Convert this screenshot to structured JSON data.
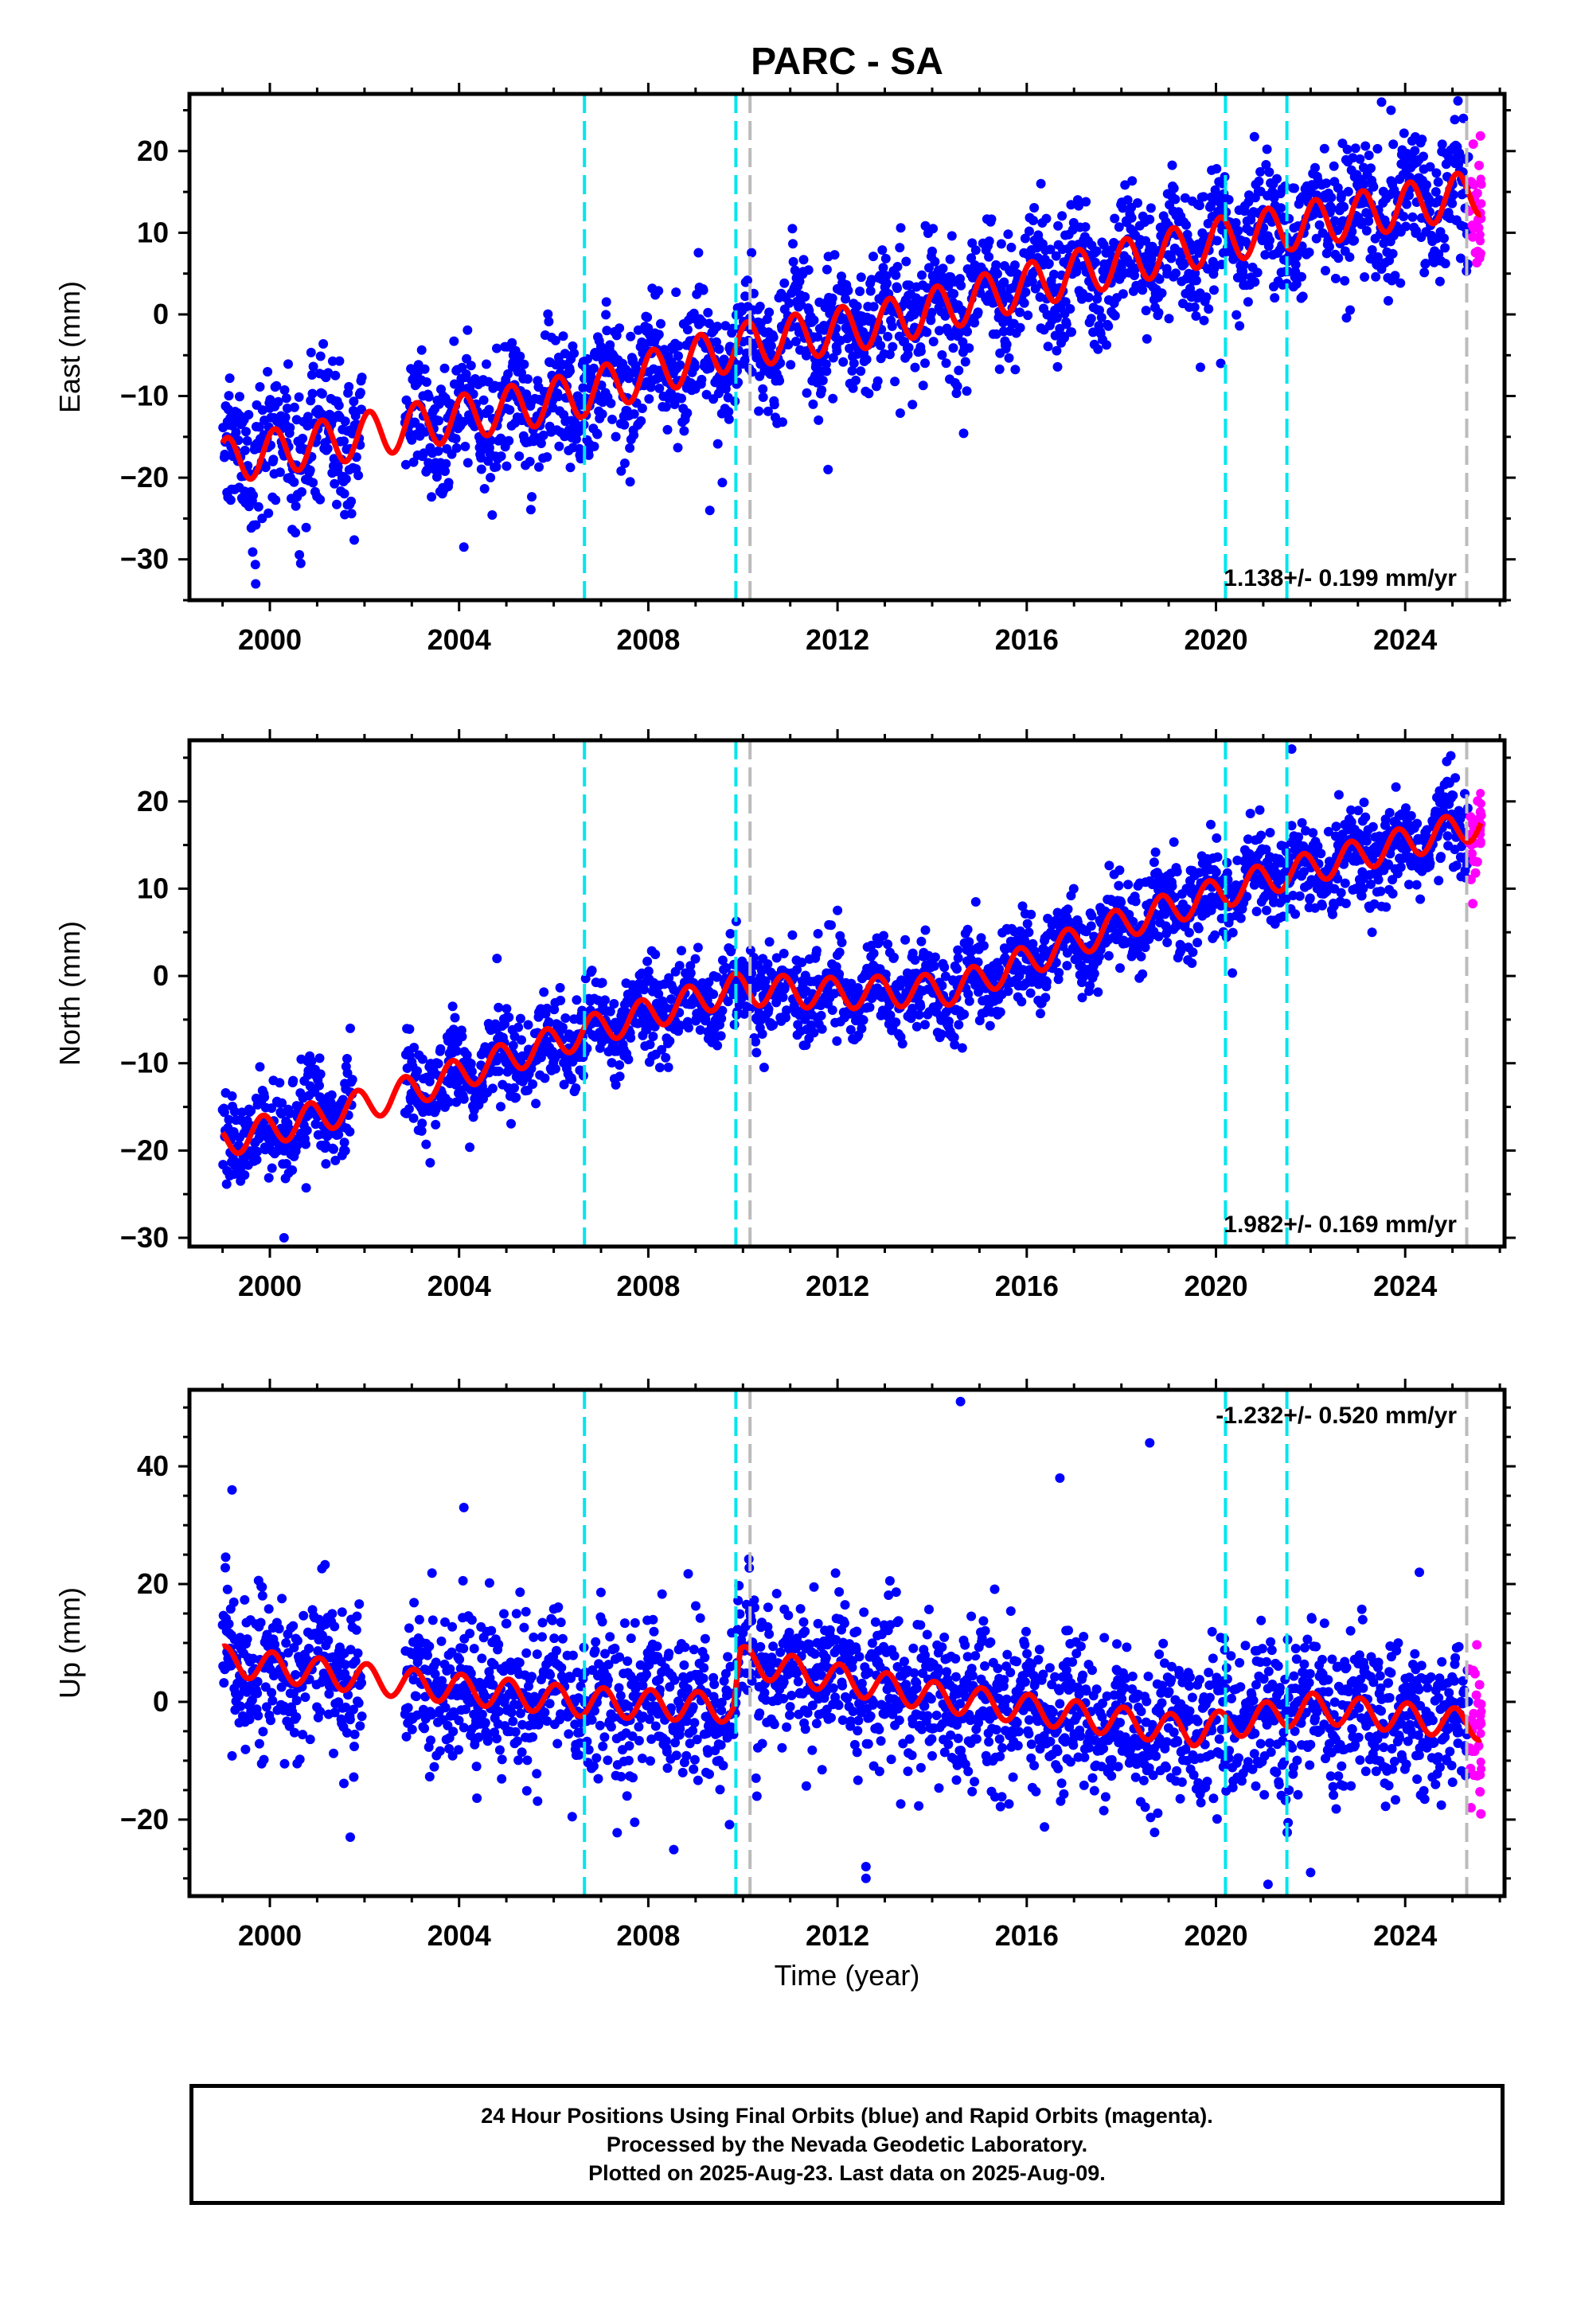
{
  "figure": {
    "title": "PARC - SA",
    "xlabel": "Time (year)",
    "caption": [
      "24 Hour Positions Using Final Orbits (blue) and Rapid Orbits (magenta).",
      "Processed by the Nevada Geodetic Laboratory.",
      "Plotted on 2025-Aug-23. Last data on 2025-Aug-09."
    ]
  },
  "colors": {
    "final_orbits": "#0000ff",
    "rapid_orbits": "#ff00ff",
    "model": "#ff0000",
    "event_line": "#00e5ee",
    "equipment_line": "#bbbbbb"
  },
  "chart_data": [
    {
      "type": "scatter",
      "name": "east",
      "ylabel": "East (mm)",
      "rate_label": "1.138+/- 0.199 mm/yr",
      "xlim": [
        1998.3,
        2026.1
      ],
      "ylim": [
        -35,
        27
      ],
      "xticks": [
        2000,
        2004,
        2008,
        2012,
        2016,
        2020,
        2024
      ],
      "yticks": [
        -30,
        -20,
        -10,
        0,
        10,
        20
      ],
      "data_start": 1999.0,
      "data_end": 2025.6,
      "rapid_start": 2025.35,
      "gaps": [
        [
          2001.95,
          2002.85
        ]
      ],
      "event_lines": [
        2006.65,
        2009.85,
        2020.2,
        2021.5
      ],
      "equipment_lines": [
        2010.15,
        2025.3
      ],
      "trend": [
        [
          1999.0,
          -18
        ],
        [
          2006.5,
          -10
        ],
        [
          2009.8,
          -4
        ],
        [
          2013.0,
          -1
        ],
        [
          2017.0,
          5
        ],
        [
          2020.0,
          9
        ],
        [
          2025.6,
          15
        ]
      ],
      "seasonal_amplitude": 2.8,
      "seasonal_phase": 0.15,
      "scatter_sd": 4,
      "outliers": [
        [
          2023.5,
          26
        ],
        [
          2023.7,
          25
        ],
        [
          1999.7,
          -33
        ],
        [
          2004.1,
          -28.5
        ],
        [
          2009.3,
          -24
        ],
        [
          2011.8,
          -19
        ],
        [
          2016.3,
          16
        ],
        [
          2020.1,
          -6
        ]
      ]
    },
    {
      "type": "scatter",
      "name": "north",
      "ylabel": "North (mm)",
      "rate_label": "1.982+/- 0.169 mm/yr",
      "xlim": [
        1998.3,
        2026.1
      ],
      "ylim": [
        -31,
        27
      ],
      "xticks": [
        2000,
        2004,
        2008,
        2012,
        2016,
        2020,
        2024
      ],
      "yticks": [
        -30,
        -20,
        -10,
        0,
        10,
        20
      ],
      "data_start": 1999.0,
      "data_end": 2025.6,
      "rapid_start": 2025.35,
      "gaps": [
        [
          2001.75,
          2002.85
        ]
      ],
      "event_lines": [
        2006.65,
        2009.85,
        2020.2,
        2021.5
      ],
      "equipment_lines": [
        2010.15,
        2025.3
      ],
      "trend": [
        [
          1999.0,
          -19
        ],
        [
          2002.5,
          -14
        ],
        [
          2006.6,
          -6.5
        ],
        [
          2009.8,
          -1.5
        ],
        [
          2012.0,
          -2
        ],
        [
          2014.5,
          -1.5
        ],
        [
          2018.0,
          6
        ],
        [
          2021.0,
          11
        ],
        [
          2025.6,
          17.5
        ]
      ],
      "seasonal_amplitude": 1.8,
      "seasonal_phase": 0.4,
      "scatter_sd": 2.6,
      "outliers": [
        [
          2021.6,
          26
        ],
        [
          2000.3,
          -30
        ],
        [
          2023.3,
          5
        ],
        [
          2004.8,
          2
        ],
        [
          2001.7,
          -6
        ],
        [
          2012.0,
          7.5
        ]
      ]
    },
    {
      "type": "scatter",
      "name": "up",
      "ylabel": "Up (mm)",
      "rate_label": "-1.232+/- 0.520 mm/yr",
      "xlim": [
        1998.3,
        2026.1
      ],
      "ylim": [
        -33,
        53
      ],
      "xticks": [
        2000,
        2004,
        2008,
        2012,
        2016,
        2020,
        2024
      ],
      "yticks": [
        -20,
        0,
        20,
        40
      ],
      "data_start": 1999.0,
      "data_end": 2025.6,
      "rapid_start": 2025.35,
      "gaps": [
        [
          2001.95,
          2002.85
        ]
      ],
      "event_lines": [
        2006.65,
        2009.85,
        2020.2,
        2021.5
      ],
      "equipment_lines": [
        2010.15,
        2025.3
      ],
      "trend": [
        [
          1999.0,
          7
        ],
        [
          2002.5,
          3.5
        ],
        [
          2006.6,
          0
        ],
        [
          2009.8,
          -1
        ],
        [
          2009.95,
          7
        ],
        [
          2014.0,
          1
        ],
        [
          2019.5,
          -5
        ],
        [
          2022.0,
          -1
        ],
        [
          2025.6,
          -4
        ]
      ],
      "seasonal_amplitude": 2.5,
      "seasonal_phase": 0.2,
      "scatter_sd": 6.5,
      "outliers": [
        [
          2014.6,
          51
        ],
        [
          2018.6,
          44
        ],
        [
          2016.7,
          38
        ],
        [
          2004.1,
          33
        ],
        [
          1999.2,
          36
        ],
        [
          2012.6,
          -28
        ],
        [
          2012.6,
          -30
        ],
        [
          2021.1,
          -31
        ],
        [
          2022.0,
          -29
        ],
        [
          2024.3,
          22
        ],
        [
          2001.7,
          -23
        ]
      ]
    }
  ]
}
